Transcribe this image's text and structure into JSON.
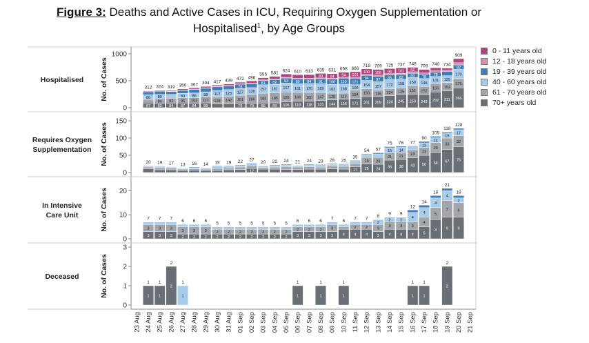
{
  "title": {
    "figure_label": "Figure 3:",
    "line1": " Deaths and Active Cases in ICU, Requiring Oxygen Supplementation or",
    "line2": "Hospitalised",
    "footnote_mark": "1",
    "line2_end": ", by Age Groups"
  },
  "legend": [
    {
      "label": "0 - 11 years old",
      "color": "#b0467e"
    },
    {
      "label": "12 - 18 years old",
      "color": "#d58fb4"
    },
    {
      "label": "19 - 39 years old",
      "color": "#3f7db4"
    },
    {
      "label": "40 - 60 years old",
      "color": "#a8cbea"
    },
    {
      "label": "61 - 70 years old",
      "color": "#a2a6ab"
    },
    {
      "label": "70+ years old",
      "color": "#6a6f75"
    }
  ],
  "chart_data": {
    "type": "bar",
    "stacked": true,
    "x": [
      "23 Aug",
      "24 Aug",
      "25 Aug",
      "26 Aug",
      "27 Aug",
      "28 Aug",
      "29 Aug",
      "30 Aug",
      "31 Aug",
      "01 Sep",
      "02 Sep",
      "03 Sep",
      "04 Sep",
      "05 Sep",
      "06 Sep",
      "07 Sep",
      "08 Sep",
      "09 Sep",
      "10 Sep",
      "11 Sep",
      "12 Sep",
      "13 Sep",
      "14 Sep",
      "15 Sep",
      "16 Sep",
      "17 Sep",
      "18 Sep",
      "19 Sep",
      "20 Sep",
      "21 Sep"
    ],
    "ylabel": "No. of Cases",
    "panels": [
      {
        "row_label": "Hospitalised",
        "ylim": [
          0,
          1050
        ],
        "ticks": [
          0,
          500,
          1000
        ],
        "totals": [
          null,
          312,
          324,
          319,
          350,
          367,
          394,
          417,
          439,
          472,
          496,
          555,
          581,
          624,
          610,
          613,
          635,
          631,
          658,
          666,
          719,
          709,
          725,
          737,
          748,
          709,
          740,
          734,
          909,
          null
        ],
        "series": [
          {
            "name": "70+ years old",
            "values": [
              null,
              87,
              82,
              84,
              87,
              84,
              89,
              71,
              71,
              79,
              79,
              85,
              89,
              105,
              118,
              118,
              131,
              144,
              156,
              171,
              201,
              209,
              224,
              245,
              250,
              243,
              292,
              311,
              366,
              null
            ]
          },
          {
            "name": "61 - 70 years old",
            "values": [
              null,
              67,
              84,
              92,
              96,
              103,
              117,
              128,
              142,
              151,
              166,
              183,
              185,
              185,
              166,
              160,
              147,
              125,
              113,
              154,
              150,
              116,
              124,
              125,
              151,
              152,
              156,
              152,
              175,
              null
            ]
          },
          {
            "name": "40 - 60 years old",
            "values": [
              null,
              86,
              80,
              71,
              83,
              86,
              88,
              117,
              123,
              127,
              128,
              157,
              161,
              167,
              161,
              170,
              169,
              163,
              168,
              100,
              154,
              157,
              172,
              158,
              158,
              146,
              131,
              129,
              170,
              null
            ]
          },
          {
            "name": "19 - 39 years old",
            "values": [
              null,
              55,
              58,
              51,
              55,
              66,
              66,
              70,
              67,
              78,
              68,
              81,
              82,
              93,
              89,
              84,
              91,
              100,
              110,
              121,
              94,
              97,
              86,
              82,
              80,
              78,
              78,
              76,
              82,
              null
            ]
          },
          {
            "name": "12 - 18 years old",
            "values": [
              null,
              5,
              6,
              5,
              6,
              6,
              7,
              7,
              9,
              8,
              9,
              11,
              13,
              13,
              12,
              13,
              14,
              15,
              17,
              19,
              20,
              24,
              25,
              26,
              27,
              26,
              27,
              28,
              41,
              null
            ]
          },
          {
            "name": "0 - 11 years old",
            "values": [
              null,
              12,
              14,
              16,
              23,
              22,
              27,
              24,
              27,
              29,
              46,
              38,
              51,
              61,
              64,
              68,
              83,
              84,
              94,
              101,
              100,
              106,
              94,
              101,
              82,
              64,
              56,
              38,
              75,
              null
            ]
          }
        ]
      },
      {
        "row_label": "Requires Oxygen Supplementation",
        "ylim": [
          0,
          160
        ],
        "ticks": [
          0,
          50,
          100,
          150
        ],
        "totals": [
          null,
          20,
          19,
          17,
          13,
          16,
          14,
          19,
          19,
          22,
          27,
          20,
          22,
          24,
          21,
          24,
          23,
          26,
          25,
          35,
          54,
          57,
          75,
          76,
          77,
          90,
          105,
          118,
          128,
          null
        ],
        "series": [
          {
            "name": "70+ years old",
            "values": [
              null,
              11,
              8,
              8,
              6,
              7,
              6,
              6,
              8,
              9,
              12,
              10,
              10,
              9,
              9,
              10,
              10,
              11,
              10,
              17,
              25,
              24,
              36,
              38,
              43,
              50,
              58,
              67,
              75,
              null
            ]
          },
          {
            "name": "61 - 70 years old",
            "values": [
              null,
              5,
              6,
              5,
              4,
              4,
              4,
              6,
              5,
              7,
              8,
              5,
              6,
              8,
              7,
              7,
              6,
              8,
              8,
              10,
              19,
              20,
              21,
              21,
              23,
              23,
              29,
              33,
              32,
              null
            ]
          },
          {
            "name": "40 - 60 years old",
            "values": [
              null,
              3,
              4,
              3,
              2,
              3,
              3,
              5,
              4,
              4,
              5,
              4,
              4,
              5,
              4,
              5,
              5,
              5,
              5,
              6,
              8,
              10,
              15,
              14,
              9,
              13,
              14,
              15,
              17,
              null
            ]
          },
          {
            "name": "19 - 39 years old",
            "values": [
              null,
              1,
              1,
              1,
              1,
              2,
              1,
              2,
              2,
              2,
              2,
              1,
              2,
              2,
              1,
              2,
              2,
              2,
              2,
              2,
              2,
              3,
              3,
              3,
              2,
              4,
              4,
              3,
              4,
              null
            ]
          }
        ]
      },
      {
        "row_label": "In Intensive Care Unit",
        "ylim": [
          0,
          23
        ],
        "ticks": [
          0,
          10,
          20
        ],
        "totals": [
          null,
          7,
          7,
          7,
          6,
          6,
          6,
          5,
          5,
          5,
          5,
          5,
          5,
          5,
          6,
          6,
          6,
          7,
          6,
          7,
          7,
          8,
          9,
          9,
          12,
          14,
          18,
          21,
          18,
          null
        ],
        "series": [
          {
            "name": "70+ years old",
            "values": [
              null,
              3,
              3,
              3,
              2,
              2,
              2,
              2,
              2,
              2,
              2,
              2,
              2,
              2,
              3,
              3,
              3,
              3,
              4,
              4,
              4,
              3,
              4,
              4,
              4,
              5,
              8,
              9,
              9,
              null
            ]
          },
          {
            "name": "61 - 70 years old",
            "values": [
              null,
              3,
              3,
              3,
              3,
              3,
              3,
              2,
              2,
              2,
              2,
              2,
              2,
              2,
              2,
              2,
              2,
              3,
              1,
              2,
              2,
              3,
              3,
              3,
              3,
              4,
              5,
              7,
              6,
              null
            ]
          },
          {
            "name": "40 - 60 years old",
            "values": [
              null,
              1,
              1,
              1,
              1,
              1,
              1,
              1,
              1,
              1,
              1,
              1,
              1,
              1,
              1,
              1,
              1,
              1,
              1,
              1,
              1,
              2,
              2,
              2,
              4,
              4,
              4,
              4,
              2,
              null
            ]
          },
          {
            "name": "19 - 39 years old",
            "values": [
              null,
              0,
              0,
              0,
              0,
              0,
              0,
              0,
              0,
              0,
              0,
              0,
              0,
              0,
              0,
              0,
              0,
              0,
              0,
              0,
              0,
              0,
              0,
              0,
              1,
              1,
              1,
              1,
              1,
              null
            ]
          }
        ]
      },
      {
        "row_label": "Deceased",
        "ylim": [
          0,
          3
        ],
        "ticks": [
          0,
          1,
          2,
          3
        ],
        "totals": [
          null,
          1,
          1,
          2,
          1,
          null,
          null,
          null,
          null,
          null,
          null,
          null,
          null,
          null,
          1,
          null,
          1,
          null,
          1,
          null,
          null,
          null,
          null,
          null,
          1,
          1,
          null,
          2,
          null,
          null
        ],
        "series": [
          {
            "name": "70+ years old",
            "values": [
              null,
              1,
              1,
              2,
              0,
              0,
              0,
              0,
              0,
              0,
              0,
              0,
              0,
              0,
              1,
              0,
              1,
              0,
              1,
              0,
              0,
              0,
              0,
              0,
              1,
              1,
              0,
              2,
              0,
              0
            ]
          },
          {
            "name": "40 - 60 years old",
            "values": [
              null,
              0,
              0,
              0,
              1,
              0,
              0,
              0,
              0,
              0,
              0,
              0,
              0,
              0,
              0,
              0,
              0,
              0,
              0,
              0,
              0,
              0,
              0,
              0,
              0,
              0,
              0,
              0,
              0,
              0
            ]
          }
        ]
      }
    ]
  }
}
